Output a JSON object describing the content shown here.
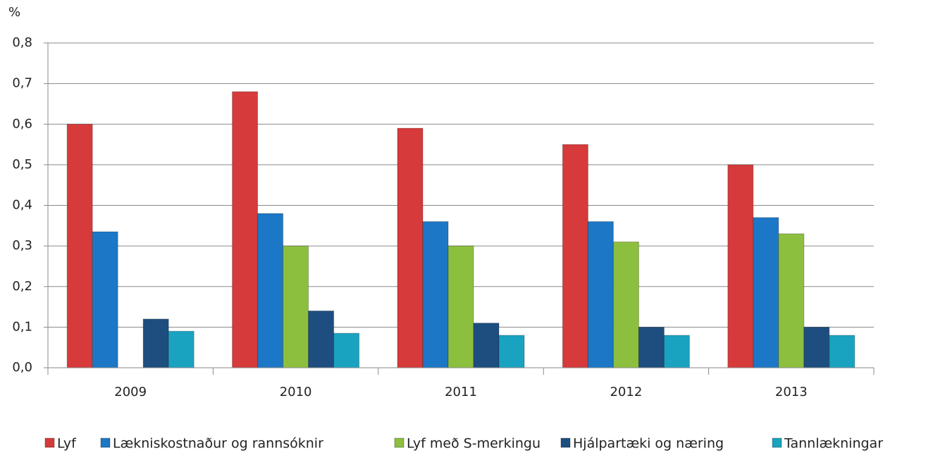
{
  "chart_data": {
    "type": "bar",
    "y_label": "%",
    "categories": [
      "2009",
      "2010",
      "2011",
      "2012",
      "2013"
    ],
    "series": [
      {
        "name": "Lyf",
        "color": "#d63a3a",
        "values": [
          0.6,
          0.68,
          0.59,
          0.55,
          0.5
        ]
      },
      {
        "name": "Lækniskostnaður og rannsóknir",
        "color": "#1c78c6",
        "values": [
          0.335,
          0.38,
          0.36,
          0.36,
          0.37
        ]
      },
      {
        "name": "Lyf með S-merkingu",
        "color": "#8dbf3f",
        "values": [
          null,
          0.3,
          0.3,
          0.31,
          0.33
        ]
      },
      {
        "name": "Hjálpartæki og næring",
        "color": "#1d4e7f",
        "values": [
          0.12,
          0.14,
          0.11,
          0.1,
          0.1
        ]
      },
      {
        "name": "Tannlækningar",
        "color": "#1aa3c0",
        "values": [
          0.09,
          0.085,
          0.08,
          0.08,
          0.08
        ]
      }
    ],
    "ylim": [
      0,
      0.8
    ],
    "yticks": [
      {
        "value": 0,
        "label": "0,0"
      },
      {
        "value": 0.1,
        "label": "0,1"
      },
      {
        "value": 0.2,
        "label": "0,2"
      },
      {
        "value": 0.3,
        "label": "0,3"
      },
      {
        "value": 0.4,
        "label": "0,4"
      },
      {
        "value": 0.5,
        "label": "0,5"
      },
      {
        "value": 0.6,
        "label": "0,6"
      },
      {
        "value": 0.7,
        "label": "0,7"
      },
      {
        "value": 0.8,
        "label": "0,8"
      }
    ],
    "grid": true,
    "legend": "bottom"
  }
}
